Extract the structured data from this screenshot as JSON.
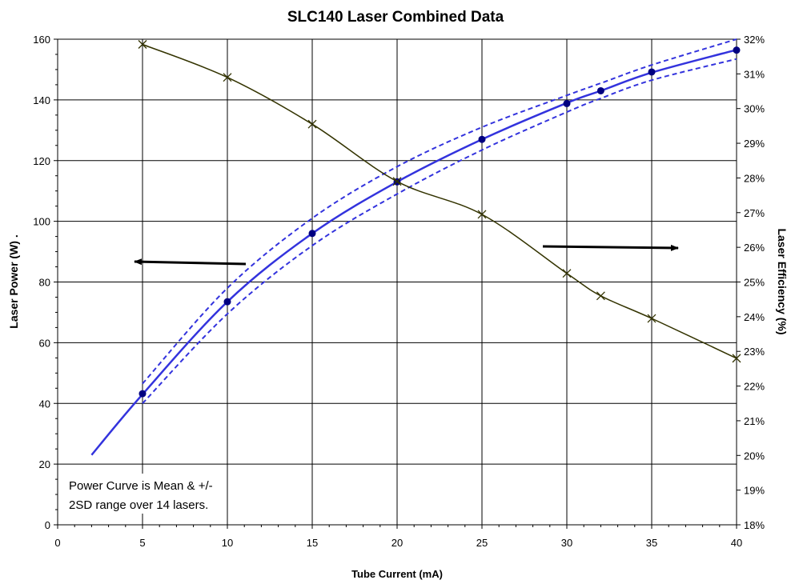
{
  "chart_data": {
    "type": "line",
    "title": "SLC140 Laser Combined Data",
    "xlabel": "Tube Current (mA)",
    "ylabel": "Laser Power (W) .",
    "y2label": "Laser Efficiency (%)",
    "xlim": [
      0,
      40
    ],
    "ylim": [
      0,
      160
    ],
    "y2lim": [
      18,
      32
    ],
    "x_ticks": [
      0,
      5,
      10,
      15,
      20,
      25,
      30,
      35,
      40
    ],
    "y_ticks": [
      0,
      20,
      40,
      60,
      80,
      100,
      120,
      140,
      160
    ],
    "y2_ticks": [
      "18%",
      "19%",
      "20%",
      "21%",
      "22%",
      "23%",
      "24%",
      "25%",
      "26%",
      "27%",
      "28%",
      "29%",
      "30%",
      "31%",
      "32%"
    ],
    "grid": true,
    "series": [
      {
        "axis": "left",
        "color": "#3333dd",
        "style": "solid-curve",
        "x": [
          2,
          5,
          10,
          15,
          20,
          25,
          30,
          32,
          35,
          40
        ],
        "y": [
          23,
          43,
          73.5,
          96,
          113,
          127,
          139,
          143,
          149,
          156.5
        ]
      },
      {
        "axis": "left",
        "color": "#000080",
        "style": "markers",
        "x": [
          5,
          10,
          15,
          20,
          25,
          30,
          32,
          35,
          40
        ],
        "y": [
          43.2,
          73.5,
          96,
          113,
          127,
          138.8,
          143,
          149.2,
          156.4
        ]
      },
      {
        "axis": "left",
        "color": "#3333dd",
        "style": "dashed-upper",
        "x": [
          5,
          10,
          15,
          20,
          25,
          30,
          32,
          35,
          40
        ],
        "y": [
          46.5,
          78,
          101,
          118,
          131,
          141.5,
          145.5,
          151.5,
          160
        ]
      },
      {
        "axis": "left",
        "color": "#3333dd",
        "style": "dashed-lower",
        "x": [
          5,
          10,
          15,
          20,
          25,
          30,
          32,
          35,
          40
        ],
        "y": [
          40,
          69.5,
          92,
          109,
          123.5,
          136,
          140.5,
          146.5,
          153.5
        ]
      },
      {
        "axis": "right",
        "color": "#333300",
        "style": "line-x-markers",
        "x": [
          5,
          10,
          15,
          20,
          25,
          30,
          32,
          35,
          40
        ],
        "y": [
          31.85,
          30.9,
          29.55,
          27.9,
          26.95,
          25.25,
          24.6,
          23.95,
          22.8
        ]
      }
    ],
    "annotation_lines": [
      "Power Curve is Mean & +/-",
      "2SD range over 14 lasers."
    ],
    "arrows": [
      {
        "direction": "left",
        "meaning": "left-axis"
      },
      {
        "direction": "right",
        "meaning": "right-axis"
      }
    ]
  }
}
